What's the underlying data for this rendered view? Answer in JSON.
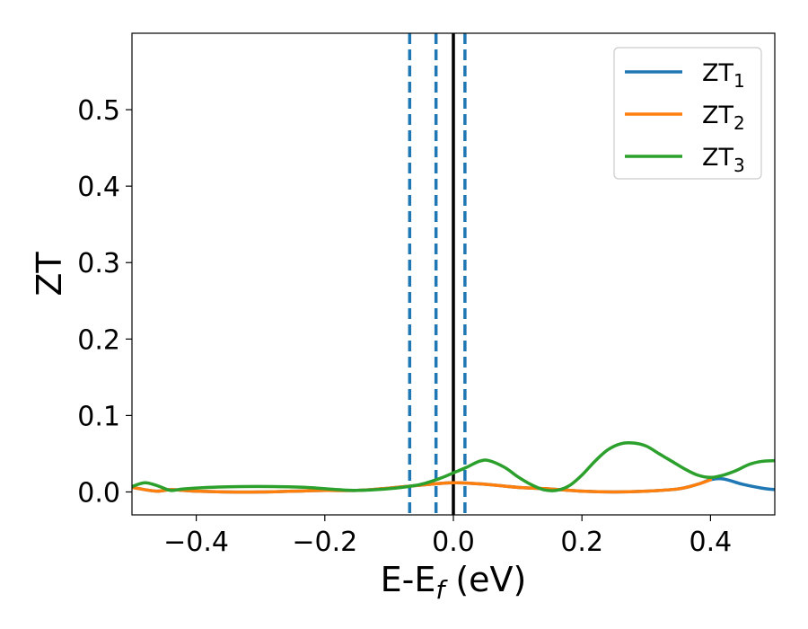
{
  "chart_data": {
    "type": "line",
    "title": "",
    "xlabel": {
      "main": "E-E",
      "sub": "f",
      "unit": " (eV)"
    },
    "ylabel": "ZT",
    "xlim": [
      -0.5,
      0.5
    ],
    "ylim": [
      -0.03,
      0.6
    ],
    "xticks": [
      -0.4,
      -0.2,
      0.0,
      0.2,
      0.4
    ],
    "xtick_labels": [
      "−0.4",
      "−0.2",
      "0.0",
      "0.2",
      "0.4"
    ],
    "yticks": [
      0.0,
      0.1,
      0.2,
      0.3,
      0.4,
      0.5
    ],
    "ytick_labels": [
      "0.0",
      "0.1",
      "0.2",
      "0.3",
      "0.4",
      "0.5"
    ],
    "grid": false,
    "legend_position": "top-right",
    "vlines": [
      {
        "x": -0.068,
        "style": "dashed",
        "color": "#1f77b4"
      },
      {
        "x": -0.027,
        "style": "dashed",
        "color": "#1f77b4"
      },
      {
        "x": 0.0,
        "style": "solid",
        "color": "#000000"
      },
      {
        "x": 0.018,
        "style": "dashed",
        "color": "#1f77b4"
      }
    ],
    "series": [
      {
        "name": "ZT",
        "name_sub": "1",
        "color": "#1f77b4",
        "points": [
          [
            -0.5,
            0.006
          ],
          [
            -0.48,
            0.003
          ],
          [
            -0.46,
            0.001
          ],
          [
            -0.44,
            0.003
          ],
          [
            -0.42,
            0.002
          ],
          [
            -0.4,
            0.001
          ],
          [
            -0.35,
            0.0
          ],
          [
            -0.3,
            0.0
          ],
          [
            -0.25,
            0.001
          ],
          [
            -0.2,
            0.002
          ],
          [
            -0.15,
            0.002
          ],
          [
            -0.1,
            0.005
          ],
          [
            -0.05,
            0.009
          ],
          [
            0.0,
            0.012
          ],
          [
            0.05,
            0.01
          ],
          [
            0.1,
            0.006
          ],
          [
            0.15,
            0.004
          ],
          [
            0.2,
            0.001
          ],
          [
            0.25,
            0.0
          ],
          [
            0.3,
            0.001
          ],
          [
            0.35,
            0.004
          ],
          [
            0.38,
            0.01
          ],
          [
            0.4,
            0.016
          ],
          [
            0.42,
            0.017
          ],
          [
            0.45,
            0.01
          ],
          [
            0.48,
            0.005
          ],
          [
            0.5,
            0.003
          ]
        ]
      },
      {
        "name": "ZT",
        "name_sub": "2",
        "color": "#ff7f0e",
        "points": [
          [
            -0.5,
            0.006
          ],
          [
            -0.48,
            0.003
          ],
          [
            -0.46,
            0.001
          ],
          [
            -0.44,
            0.003
          ],
          [
            -0.42,
            0.002
          ],
          [
            -0.4,
            0.001
          ],
          [
            -0.35,
            0.0
          ],
          [
            -0.3,
            0.0
          ],
          [
            -0.25,
            0.001
          ],
          [
            -0.2,
            0.002
          ],
          [
            -0.15,
            0.002
          ],
          [
            -0.1,
            0.005
          ],
          [
            -0.05,
            0.009
          ],
          [
            0.0,
            0.012
          ],
          [
            0.05,
            0.01
          ],
          [
            0.1,
            0.006
          ],
          [
            0.15,
            0.004
          ],
          [
            0.2,
            0.001
          ],
          [
            0.25,
            0.0
          ],
          [
            0.3,
            0.001
          ],
          [
            0.35,
            0.004
          ],
          [
            0.38,
            0.01
          ],
          [
            0.4,
            0.016
          ]
        ]
      },
      {
        "name": "ZT",
        "name_sub": "3",
        "color": "#2ca02c",
        "points": [
          [
            -0.5,
            0.007
          ],
          [
            -0.48,
            0.012
          ],
          [
            -0.46,
            0.008
          ],
          [
            -0.44,
            0.002
          ],
          [
            -0.42,
            0.004
          ],
          [
            -0.38,
            0.006
          ],
          [
            -0.33,
            0.007
          ],
          [
            -0.28,
            0.007
          ],
          [
            -0.23,
            0.006
          ],
          [
            -0.18,
            0.003
          ],
          [
            -0.15,
            0.002
          ],
          [
            -0.12,
            0.003
          ],
          [
            -0.08,
            0.006
          ],
          [
            -0.05,
            0.01
          ],
          [
            -0.02,
            0.018
          ],
          [
            0.0,
            0.025
          ],
          [
            0.02,
            0.032
          ],
          [
            0.04,
            0.04
          ],
          [
            0.055,
            0.041
          ],
          [
            0.08,
            0.032
          ],
          [
            0.1,
            0.02
          ],
          [
            0.12,
            0.01
          ],
          [
            0.14,
            0.003
          ],
          [
            0.16,
            0.002
          ],
          [
            0.18,
            0.008
          ],
          [
            0.2,
            0.022
          ],
          [
            0.22,
            0.04
          ],
          [
            0.24,
            0.055
          ],
          [
            0.26,
            0.063
          ],
          [
            0.28,
            0.064
          ],
          [
            0.3,
            0.06
          ],
          [
            0.32,
            0.05
          ],
          [
            0.34,
            0.04
          ],
          [
            0.36,
            0.03
          ],
          [
            0.38,
            0.022
          ],
          [
            0.4,
            0.019
          ],
          [
            0.42,
            0.022
          ],
          [
            0.44,
            0.028
          ],
          [
            0.46,
            0.036
          ],
          [
            0.48,
            0.04
          ],
          [
            0.5,
            0.041
          ]
        ]
      }
    ]
  }
}
